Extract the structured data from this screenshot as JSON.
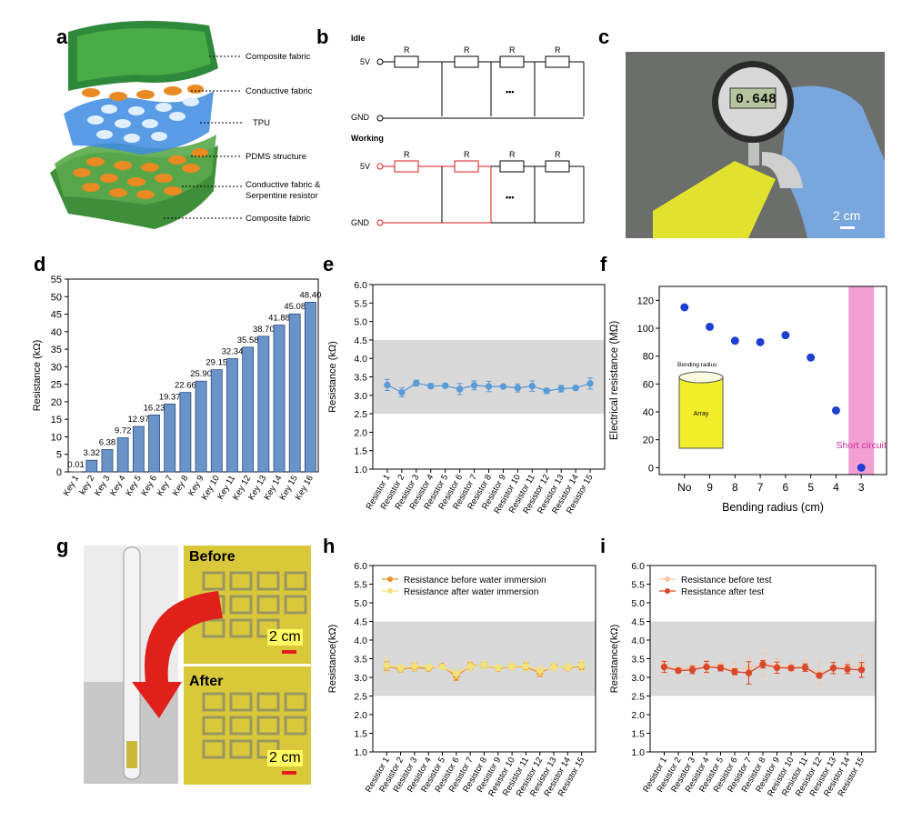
{
  "panels": {
    "a": "a",
    "b": "b",
    "c": "c",
    "d": "d",
    "e": "e",
    "f": "f",
    "g": "g",
    "h": "h",
    "i": "i"
  },
  "panel_a": {
    "labels": [
      "Composite fabric",
      "Conductive fabric",
      "TPU",
      "PDMS structure",
      "Conductive fabric &",
      "Serpentine resistor",
      "Composite fabric"
    ]
  },
  "panel_b": {
    "idle": "Idle",
    "working": "Working",
    "v5": "5V",
    "gnd": "GND",
    "r": "R",
    "dots": "•••"
  },
  "panel_c": {
    "readout": "0.648",
    "scale": "2 cm",
    "colors": {
      "background": "#6b6e6a",
      "glove": "#7aa6de",
      "fabric": "#e8e82a"
    }
  },
  "panel_g": {
    "before": "Before",
    "after": "After",
    "scale_top": "2 cm",
    "scale_bottom": "2 cm",
    "colors": {
      "fabric": "#d9c93a",
      "arrow": "#e0201a"
    }
  },
  "chart_data": [
    {
      "id": "d",
      "type": "bar",
      "ylabel": "Resistance (kΩ)",
      "ylim": [
        0,
        55
      ],
      "yticks": [
        0,
        5,
        10,
        15,
        20,
        25,
        30,
        35,
        40,
        45,
        50,
        55
      ],
      "categories": [
        "Key 1",
        "key 2",
        "Key 3",
        "Key 4",
        "Key 5",
        "Key 6",
        "Key 7",
        "Key 8",
        "Key 9",
        "Key 10",
        "Key 11",
        "Key 12",
        "Key 13",
        "Key 14",
        "Key 15",
        "Key 16"
      ],
      "values": [
        0.01,
        3.32,
        6.38,
        9.72,
        12.97,
        16.23,
        19.37,
        22.66,
        25.9,
        29.15,
        32.34,
        35.58,
        38.7,
        41.88,
        45.08,
        48.4
      ],
      "value_labels": [
        "0.01",
        "3.32",
        "6.38",
        "9.72",
        "12.97",
        "16.23",
        "19.37",
        "22.66",
        "25.90",
        "29.15",
        "32.34",
        "35.58",
        "38.70",
        "41.88",
        "45.08",
        "48.40"
      ],
      "color": "#6a93c8"
    },
    {
      "id": "e",
      "type": "line",
      "ylabel": "Resistance (kΩ)",
      "ylim": [
        1.0,
        6.0
      ],
      "yticks": [
        "1.0",
        "1.5",
        "2.0",
        "2.5",
        "3.0",
        "3.5",
        "4.0",
        "4.5",
        "5.0",
        "5.5",
        "6.0"
      ],
      "band": [
        2.5,
        4.5
      ],
      "categories": [
        "Resistor 1",
        "Resistor 2",
        "Resistor 3",
        "Resistor 4",
        "Resistor 5",
        "Resistor 6",
        "Resistor 7",
        "Resistor 8",
        "Resistor 9",
        "Resistor 10",
        "Resistor 11",
        "Resistor 12",
        "Resistor 13",
        "Resistor 14",
        "Resistor 15"
      ],
      "series": [
        {
          "name": "",
          "color": "#5b9bd5",
          "values": [
            3.28,
            3.08,
            3.33,
            3.25,
            3.26,
            3.17,
            3.27,
            3.24,
            3.24,
            3.2,
            3.25,
            3.12,
            3.18,
            3.2,
            3.32
          ],
          "errors": [
            0.15,
            0.12,
            0.08,
            0.06,
            0.05,
            0.15,
            0.12,
            0.14,
            0.04,
            0.11,
            0.14,
            0.07,
            0.09,
            0.06,
            0.15
          ]
        }
      ]
    },
    {
      "id": "f",
      "type": "scatter",
      "ylabel": "Electrical resistance (MΩ)",
      "xlabel": "Bending radius (cm)",
      "ylim": [
        -5,
        130
      ],
      "yticks": [
        0,
        20,
        40,
        60,
        80,
        100,
        120
      ],
      "categories": [
        "No",
        "9",
        "8",
        "7",
        "6",
        "5",
        "4",
        "3"
      ],
      "values": [
        115,
        101,
        91,
        90,
        95,
        79,
        41,
        0
      ],
      "band_category": "3",
      "annotation": "Short circuit",
      "inset": {
        "title": "Bending radius",
        "label": "Array"
      },
      "color": "#1f3fd0"
    },
    {
      "id": "h",
      "type": "line",
      "ylabel": "Resistance(kΩ)",
      "ylim": [
        1.0,
        6.0
      ],
      "yticks": [
        "1.0",
        "1.5",
        "2.0",
        "2.5",
        "3.0",
        "3.5",
        "4.0",
        "4.5",
        "5.0",
        "5.5",
        "6.0"
      ],
      "band": [
        2.5,
        4.5
      ],
      "categories": [
        "Resistor 1",
        "Resistor 2",
        "Resistor 3",
        "Resistor 4",
        "Resistor 5",
        "Resistor 6",
        "Resistor 7",
        "Resistor 8",
        "Resistor 9",
        "Resistor 10",
        "Resistor 11",
        "Resistor 12",
        "Resistor 13",
        "Resistor 14",
        "Resistor 15"
      ],
      "series": [
        {
          "name": "Resistance before water immersion",
          "color": "#e8912a",
          "values": [
            3.3,
            3.22,
            3.27,
            3.24,
            3.3,
            3.02,
            3.32,
            3.32,
            3.24,
            3.29,
            3.28,
            3.12,
            3.3,
            3.25,
            3.3
          ],
          "errors": [
            0.12,
            0.08,
            0.1,
            0.06,
            0.05,
            0.1,
            0.1,
            0.08,
            0.06,
            0.06,
            0.1,
            0.1,
            0.08,
            0.07,
            0.1
          ]
        },
        {
          "name": "Resistance after water immersion",
          "color": "#f3e27a",
          "values": [
            3.32,
            3.25,
            3.3,
            3.27,
            3.28,
            3.1,
            3.3,
            3.33,
            3.26,
            3.3,
            3.3,
            3.18,
            3.28,
            3.27,
            3.32
          ],
          "errors": [
            0.18,
            0.1,
            0.12,
            0.08,
            0.07,
            0.12,
            0.12,
            0.1,
            0.08,
            0.08,
            0.12,
            0.12,
            0.1,
            0.09,
            0.14
          ]
        }
      ]
    },
    {
      "id": "i",
      "type": "line",
      "ylabel": "Resistance(kΩ)",
      "ylim": [
        1.0,
        6.0
      ],
      "yticks": [
        "1.0",
        "1.5",
        "2.0",
        "2.5",
        "3.0",
        "3.5",
        "4.0",
        "4.5",
        "5.0",
        "5.5",
        "6.0"
      ],
      "band": [
        2.5,
        4.5
      ],
      "categories": [
        "Resistor 1",
        "Resistor 2",
        "Resistor 3",
        "Resistor 4",
        "Resistor 5",
        "Resistor 6",
        "Resistor 7",
        "Resistor 8",
        "Resistor 9",
        "Resistor 10",
        "Resistor 11",
        "Resistor 12",
        "Resistor 13",
        "Resistor 14",
        "Resistor 15"
      ],
      "series": [
        {
          "name": "Resistance before test",
          "color": "#f5c6a5",
          "values": [
            3.3,
            3.22,
            3.25,
            3.3,
            3.3,
            3.2,
            3.25,
            3.35,
            3.3,
            3.28,
            3.3,
            3.1,
            3.25,
            3.28,
            3.3
          ],
          "errors": [
            0.1,
            0.08,
            0.1,
            0.15,
            0.08,
            0.2,
            0.25,
            0.3,
            0.2,
            0.12,
            0.15,
            0.3,
            0.15,
            0.15,
            0.3
          ]
        },
        {
          "name": "Resistance after test",
          "color": "#d9472a",
          "values": [
            3.28,
            3.18,
            3.2,
            3.28,
            3.25,
            3.15,
            3.12,
            3.35,
            3.26,
            3.25,
            3.26,
            3.05,
            3.25,
            3.22,
            3.2
          ],
          "errors": [
            0.15,
            0.05,
            0.1,
            0.15,
            0.08,
            0.08,
            0.3,
            0.1,
            0.15,
            0.06,
            0.1,
            0.05,
            0.15,
            0.12,
            0.2
          ]
        }
      ]
    }
  ]
}
